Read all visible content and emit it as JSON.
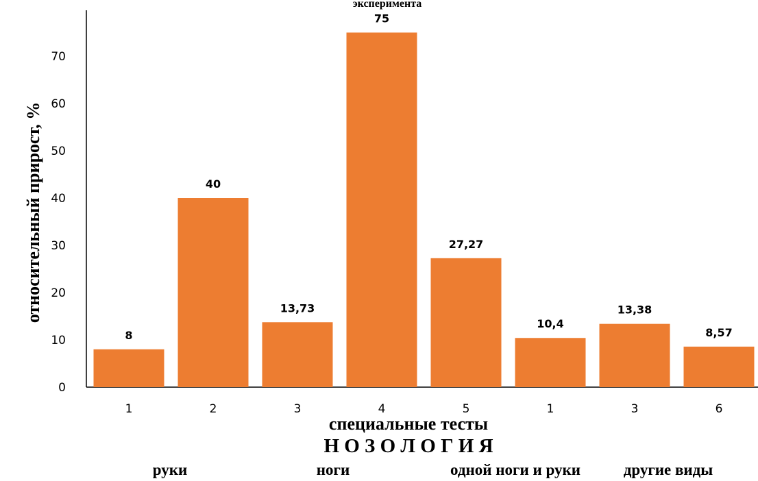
{
  "chart_data": {
    "type": "bar",
    "title": "эксперимента",
    "ylabel": "относительный прирост, %",
    "xlabel": "специальные тесты",
    "group_title": "Н О З О Л О Г И Я",
    "groups": [
      "руки",
      "ноги",
      "одной ноги и руки",
      "другие виды"
    ],
    "categories": [
      "1",
      "2",
      "3",
      "4",
      "5",
      "1",
      "3",
      "6"
    ],
    "values": [
      8,
      40,
      13.73,
      75,
      27.27,
      10.4,
      13.38,
      8.57
    ],
    "value_labels": [
      "8",
      "40",
      "13,73",
      "75",
      "27,27",
      "10,4",
      "13,38",
      "8,57"
    ],
    "yticks": [
      0,
      10,
      20,
      30,
      40,
      50,
      60,
      70
    ],
    "ylim": [
      0,
      80
    ],
    "bar_color": "#ed7d31",
    "grid": false
  }
}
